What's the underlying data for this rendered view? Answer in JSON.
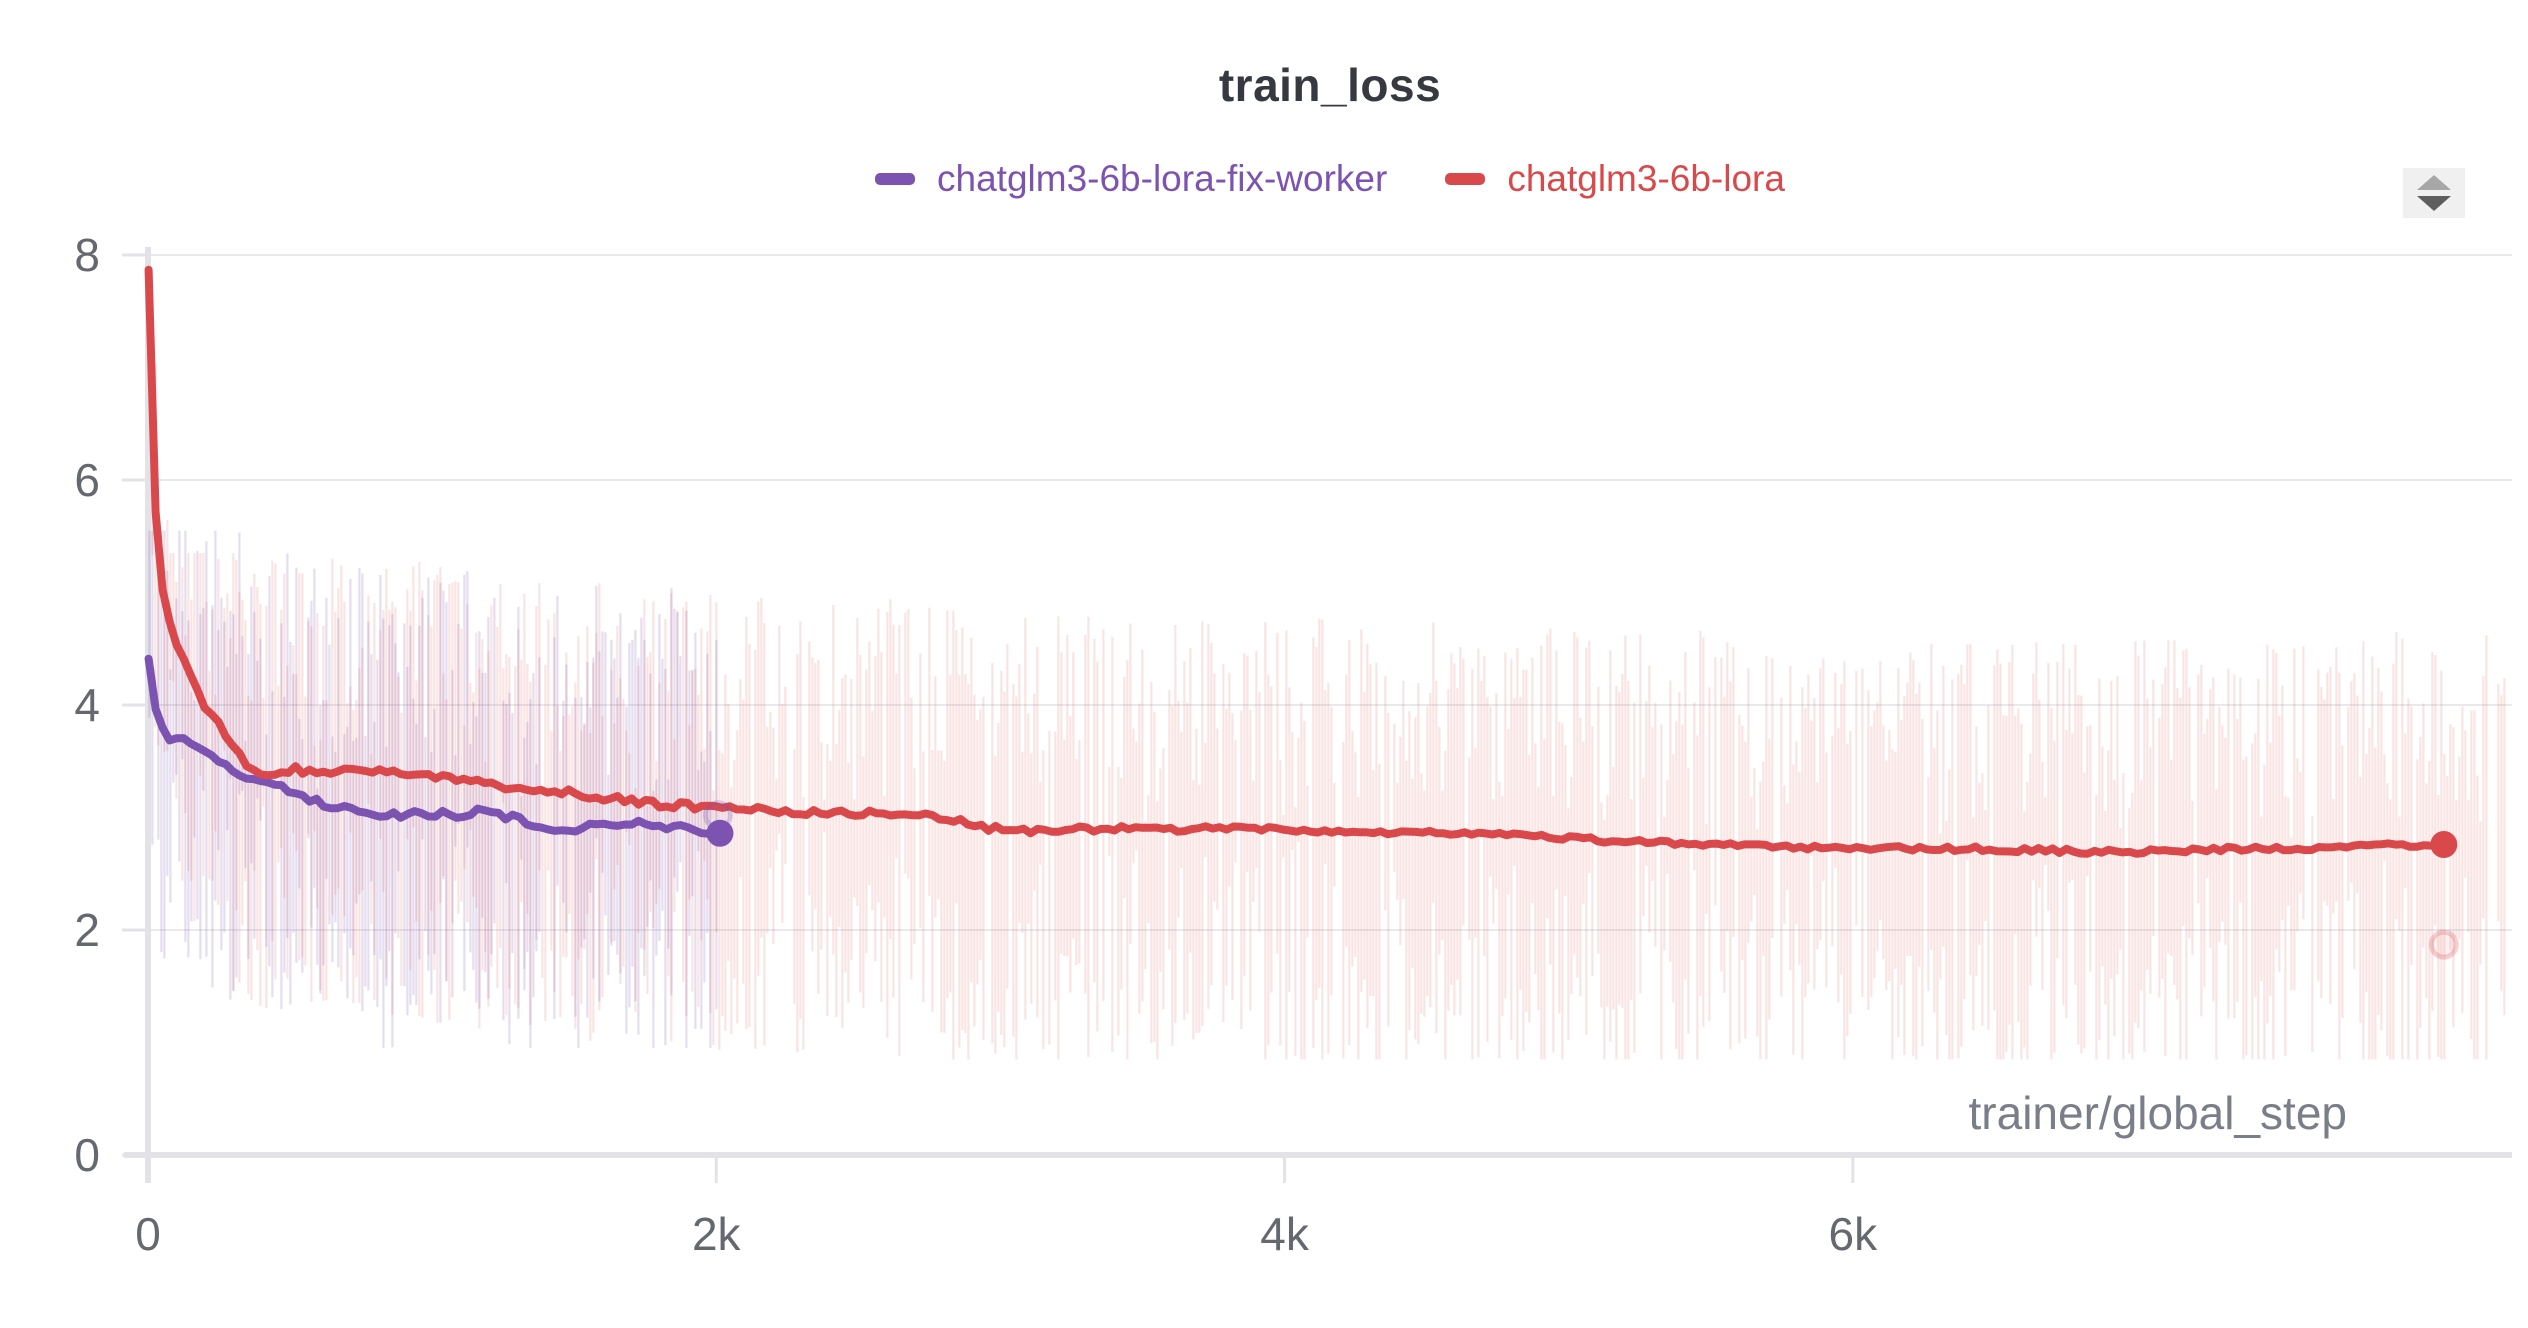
{
  "header": {
    "title": "train_loss"
  },
  "legend": {
    "items": [
      {
        "label": "chatglm3-6b-lora-fix-worker",
        "color": "#7d53b2"
      },
      {
        "label": "chatglm3-6b-lora",
        "color": "#d9494b"
      }
    ]
  },
  "controls": {
    "stepper_icon": "up-down-stepper"
  },
  "axis": {
    "y_tick_labels": [
      "0",
      "2",
      "4",
      "6",
      "8"
    ],
    "x_tick_labels": [
      "0",
      "2k",
      "4k",
      "6k"
    ]
  },
  "colors": {
    "grid": "#e9e9ec",
    "axis": "#e3e3e7",
    "tick_text": "#64686f",
    "title_text": "#363a40",
    "xlabel_text": "#7a7e88"
  },
  "chart_data": {
    "type": "line",
    "title": "train_loss",
    "xlabel": "trainer/global_step",
    "ylabel": "",
    "xlim": [
      0,
      8320
    ],
    "ylim": [
      0,
      8
    ],
    "grid": "horizontal",
    "legend_position": "top-center",
    "y_ticks": [
      {
        "value": 0,
        "label": "0"
      },
      {
        "value": 2,
        "label": "2"
      },
      {
        "value": 4,
        "label": "4"
      },
      {
        "value": 6,
        "label": "6"
      },
      {
        "value": 8,
        "label": "8"
      }
    ],
    "x_ticks": [
      {
        "value": 0,
        "label": "0"
      },
      {
        "value": 2000,
        "label": "2k"
      },
      {
        "value": 4000,
        "label": "4k"
      },
      {
        "value": 6000,
        "label": "6k"
      }
    ],
    "series": [
      {
        "name": "chatglm3-6b-lora-fix-worker",
        "color": "#7d53b2",
        "line_width": 8,
        "end_marker": {
          "step": 2013,
          "value": 2.86
        },
        "raw_end_marker": {
          "step": 2006,
          "value": 3.02
        },
        "raw_band": {
          "start": 5,
          "end": 2013,
          "spread_up": 2.2,
          "spread_down": 2.1,
          "hi_cap": 5.55,
          "lo_cap": 0.95,
          "opacity": 0.2,
          "initial_spike": 0
        },
        "points": [
          [
            2,
            4.42
          ],
          [
            12,
            4.28
          ],
          [
            22,
            4.05
          ],
          [
            35,
            3.88
          ],
          [
            50,
            3.78
          ],
          [
            65,
            3.73
          ],
          [
            80,
            3.7
          ],
          [
            95,
            3.74
          ],
          [
            110,
            3.68
          ],
          [
            130,
            3.72
          ],
          [
            150,
            3.66
          ],
          [
            175,
            3.62
          ],
          [
            200,
            3.58
          ],
          [
            230,
            3.53
          ],
          [
            260,
            3.49
          ],
          [
            290,
            3.45
          ],
          [
            320,
            3.4
          ],
          [
            350,
            3.36
          ],
          [
            380,
            3.33
          ],
          [
            410,
            3.31
          ],
          [
            440,
            3.28
          ],
          [
            470,
            3.26
          ],
          [
            500,
            3.24
          ],
          [
            530,
            3.21
          ],
          [
            560,
            3.17
          ],
          [
            590,
            3.14
          ],
          [
            620,
            3.12
          ],
          [
            650,
            3.1
          ],
          [
            680,
            3.08
          ],
          [
            710,
            3.06
          ],
          [
            740,
            3.05
          ],
          [
            770,
            3.04
          ],
          [
            800,
            3.03
          ],
          [
            830,
            3.02
          ],
          [
            860,
            3.02
          ],
          [
            890,
            3.03
          ],
          [
            920,
            3.04
          ],
          [
            950,
            3.05
          ],
          [
            980,
            3.03
          ],
          [
            1010,
            3.03
          ],
          [
            1040,
            3.05
          ],
          [
            1070,
            3.04
          ],
          [
            1100,
            3.02
          ],
          [
            1130,
            3.04
          ],
          [
            1160,
            3.06
          ],
          [
            1190,
            3.05
          ],
          [
            1220,
            3.03
          ],
          [
            1250,
            3.02
          ],
          [
            1280,
            3.0
          ],
          [
            1310,
            2.99
          ],
          [
            1340,
            2.96
          ],
          [
            1370,
            2.93
          ],
          [
            1400,
            2.91
          ],
          [
            1430,
            2.9
          ],
          [
            1460,
            2.89
          ],
          [
            1490,
            2.89
          ],
          [
            1520,
            2.9
          ],
          [
            1550,
            2.91
          ],
          [
            1580,
            2.93
          ],
          [
            1610,
            2.93
          ],
          [
            1640,
            2.94
          ],
          [
            1670,
            2.95
          ],
          [
            1700,
            2.96
          ],
          [
            1730,
            2.95
          ],
          [
            1760,
            2.93
          ],
          [
            1790,
            2.91
          ],
          [
            1820,
            2.92
          ],
          [
            1850,
            2.93
          ],
          [
            1880,
            2.92
          ],
          [
            1910,
            2.9
          ],
          [
            1940,
            2.88
          ],
          [
            1970,
            2.87
          ],
          [
            2013,
            2.86
          ]
        ]
      },
      {
        "name": "chatglm3-6b-lora",
        "color": "#d9494b",
        "line_width": 8,
        "end_marker": {
          "step": 8080,
          "value": 2.76
        },
        "raw_end_marker": {
          "step": 8080,
          "value": 1.87
        },
        "raw_band": {
          "start": 5,
          "end": 8300,
          "spread_up": 1.9,
          "spread_down": 2.2,
          "hi_cap": 5.35,
          "lo_cap": 0.85,
          "opacity": 0.15,
          "initial_spike": 7.9
        },
        "points": [
          [
            2,
            7.9
          ],
          [
            8,
            7.55
          ],
          [
            15,
            6.7
          ],
          [
            25,
            5.8
          ],
          [
            35,
            5.25
          ],
          [
            50,
            5.05
          ],
          [
            70,
            4.8
          ],
          [
            90,
            4.62
          ],
          [
            110,
            4.5
          ],
          [
            140,
            4.32
          ],
          [
            170,
            4.15
          ],
          [
            200,
            4.0
          ],
          [
            240,
            3.86
          ],
          [
            280,
            3.72
          ],
          [
            320,
            3.58
          ],
          [
            350,
            3.47
          ],
          [
            380,
            3.4
          ],
          [
            410,
            3.37
          ],
          [
            440,
            3.39
          ],
          [
            470,
            3.42
          ],
          [
            500,
            3.43
          ],
          [
            550,
            3.42
          ],
          [
            600,
            3.4
          ],
          [
            650,
            3.42
          ],
          [
            700,
            3.43
          ],
          [
            750,
            3.41
          ],
          [
            800,
            3.4
          ],
          [
            850,
            3.39
          ],
          [
            900,
            3.38
          ],
          [
            950,
            3.39
          ],
          [
            1000,
            3.38
          ],
          [
            1060,
            3.36
          ],
          [
            1120,
            3.33
          ],
          [
            1180,
            3.3
          ],
          [
            1240,
            3.28
          ],
          [
            1300,
            3.27
          ],
          [
            1360,
            3.25
          ],
          [
            1420,
            3.23
          ],
          [
            1480,
            3.22
          ],
          [
            1540,
            3.2
          ],
          [
            1600,
            3.18
          ],
          [
            1660,
            3.16
          ],
          [
            1720,
            3.14
          ],
          [
            1780,
            3.12
          ],
          [
            1840,
            3.11
          ],
          [
            1900,
            3.1
          ],
          [
            1960,
            3.09
          ],
          [
            2020,
            3.1
          ],
          [
            2080,
            3.08
          ],
          [
            2140,
            3.07
          ],
          [
            2200,
            3.06
          ],
          [
            2260,
            3.05
          ],
          [
            2320,
            3.05
          ],
          [
            2380,
            3.06
          ],
          [
            2440,
            3.05
          ],
          [
            2500,
            3.04
          ],
          [
            2560,
            3.05
          ],
          [
            2620,
            3.04
          ],
          [
            2680,
            3.03
          ],
          [
            2740,
            3.02
          ],
          [
            2800,
            3.0
          ],
          [
            2850,
            2.97
          ],
          [
            2900,
            2.93
          ],
          [
            2950,
            2.9
          ],
          [
            3000,
            2.89
          ],
          [
            3060,
            2.88
          ],
          [
            3120,
            2.88
          ],
          [
            3180,
            2.89
          ],
          [
            3240,
            2.9
          ],
          [
            3300,
            2.9
          ],
          [
            3360,
            2.89
          ],
          [
            3420,
            2.9
          ],
          [
            3480,
            2.91
          ],
          [
            3540,
            2.9
          ],
          [
            3600,
            2.9
          ],
          [
            3660,
            2.89
          ],
          [
            3720,
            2.9
          ],
          [
            3780,
            2.91
          ],
          [
            3840,
            2.9
          ],
          [
            3900,
            2.89
          ],
          [
            3960,
            2.9
          ],
          [
            4020,
            2.9
          ],
          [
            4080,
            2.89
          ],
          [
            4140,
            2.88
          ],
          [
            4200,
            2.88
          ],
          [
            4260,
            2.87
          ],
          [
            4320,
            2.87
          ],
          [
            4380,
            2.86
          ],
          [
            4440,
            2.87
          ],
          [
            4500,
            2.86
          ],
          [
            4560,
            2.86
          ],
          [
            4620,
            2.86
          ],
          [
            4680,
            2.86
          ],
          [
            4740,
            2.86
          ],
          [
            4800,
            2.85
          ],
          [
            4860,
            2.84
          ],
          [
            4920,
            2.83
          ],
          [
            4980,
            2.82
          ],
          [
            5040,
            2.81
          ],
          [
            5100,
            2.8
          ],
          [
            5160,
            2.79
          ],
          [
            5220,
            2.79
          ],
          [
            5280,
            2.78
          ],
          [
            5340,
            2.77
          ],
          [
            5400,
            2.77
          ],
          [
            5460,
            2.76
          ],
          [
            5520,
            2.76
          ],
          [
            5580,
            2.75
          ],
          [
            5640,
            2.75
          ],
          [
            5700,
            2.74
          ],
          [
            5760,
            2.74
          ],
          [
            5820,
            2.74
          ],
          [
            5880,
            2.73
          ],
          [
            5940,
            2.73
          ],
          [
            6000,
            2.73
          ],
          [
            6100,
            2.73
          ],
          [
            6200,
            2.73
          ],
          [
            6300,
            2.72
          ],
          [
            6400,
            2.72
          ],
          [
            6500,
            2.72
          ],
          [
            6600,
            2.71
          ],
          [
            6700,
            2.71
          ],
          [
            6800,
            2.7
          ],
          [
            6900,
            2.7
          ],
          [
            7000,
            2.7
          ],
          [
            7100,
            2.71
          ],
          [
            7200,
            2.71
          ],
          [
            7300,
            2.72
          ],
          [
            7400,
            2.72
          ],
          [
            7500,
            2.73
          ],
          [
            7600,
            2.73
          ],
          [
            7700,
            2.74
          ],
          [
            7800,
            2.74
          ],
          [
            7900,
            2.75
          ],
          [
            8000,
            2.76
          ],
          [
            8080,
            2.76
          ]
        ]
      }
    ]
  }
}
